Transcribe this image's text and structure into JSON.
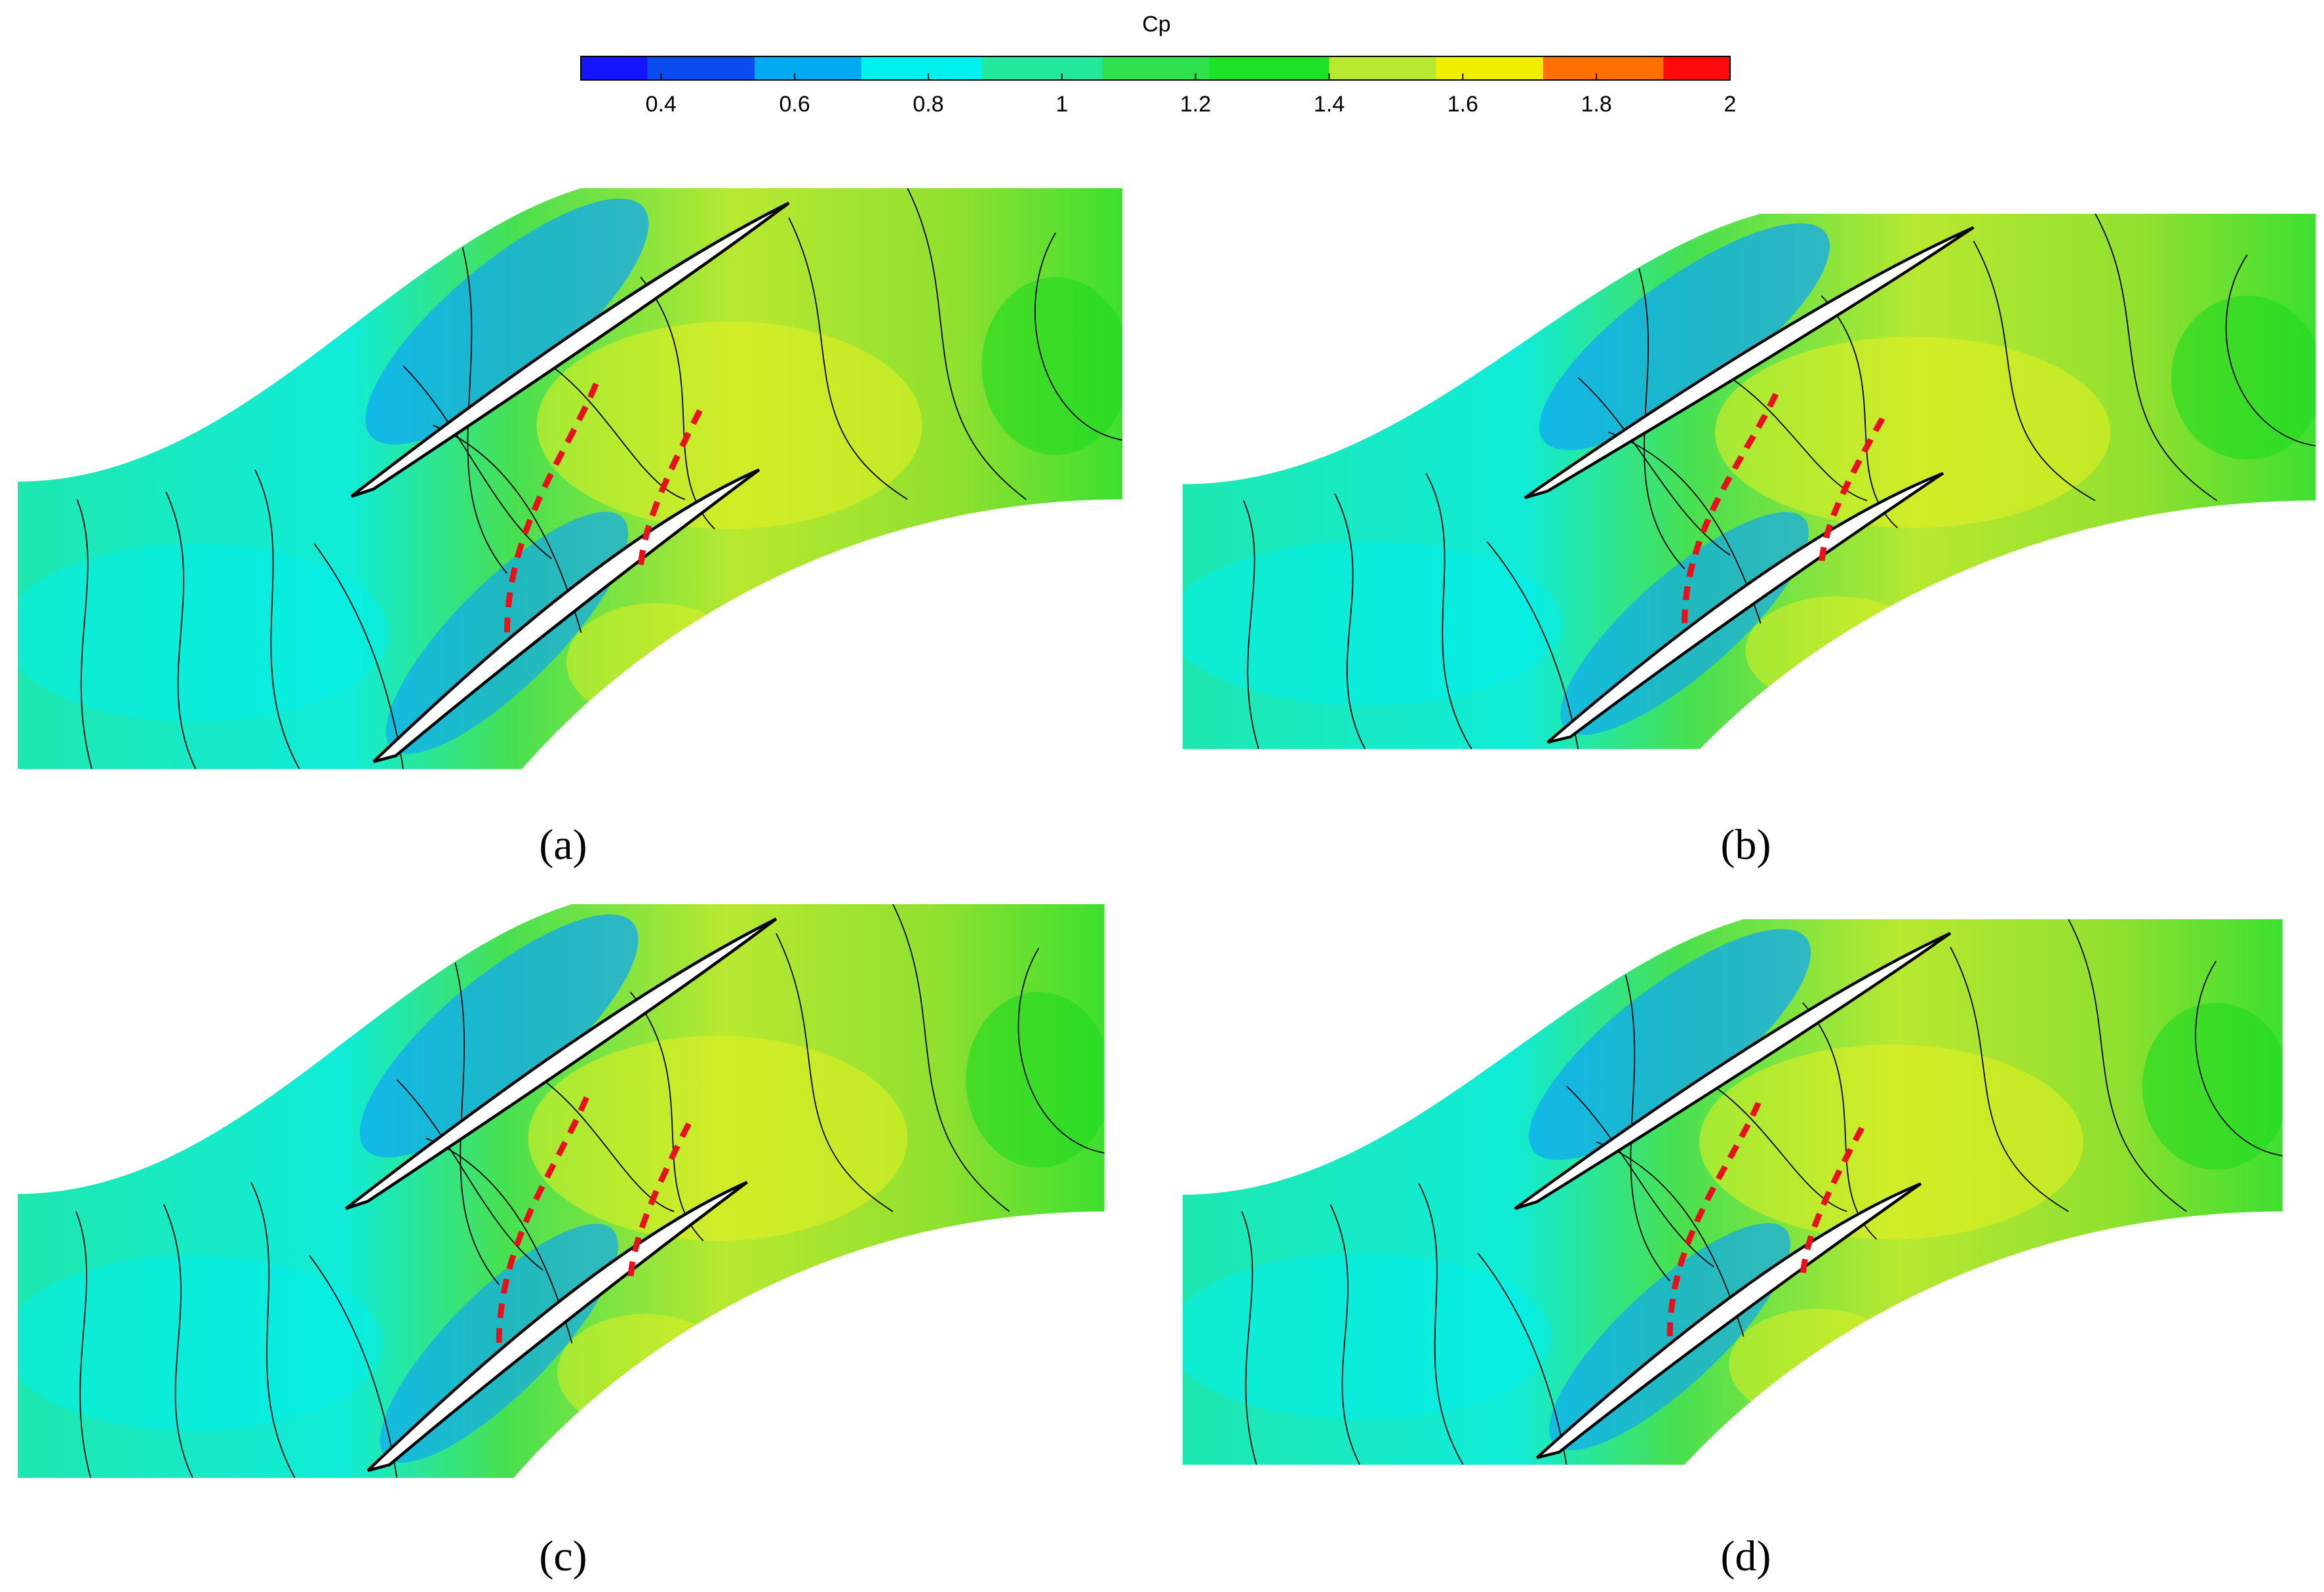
{
  "colorbar": {
    "title": "Cp",
    "lim": [
      0.28,
      2
    ],
    "levels": [
      0.28,
      0.38,
      0.54,
      0.7,
      0.88,
      1.06,
      1.22,
      1.4,
      1.56,
      1.72,
      1.9,
      2
    ],
    "colors": [
      "#1414ff",
      "#0a4cf0",
      "#00aaf0",
      "#00f0f0",
      "#22e89c",
      "#2ee04c",
      "#1ee228",
      "#b8e830",
      "#f2ee00",
      "#ff7000",
      "#ff0a0a"
    ],
    "ticks": [
      0.4,
      0.6,
      0.8,
      1,
      1.2,
      1.4,
      1.6,
      1.8,
      2
    ]
  },
  "panels": [
    {
      "label": "(a)"
    },
    {
      "label": "(b)"
    },
    {
      "label": "(c)"
    },
    {
      "label": "(d)"
    }
  ]
}
